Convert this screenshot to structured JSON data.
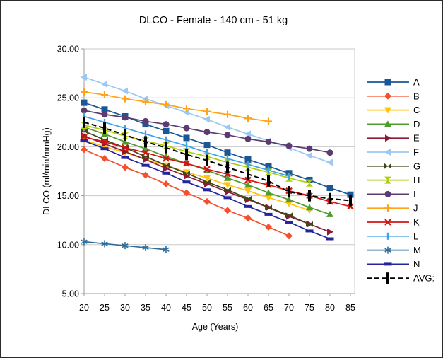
{
  "chart_data": {
    "type": "line",
    "title": "DLCO - Female - 140 cm - 51 kg",
    "xlabel": "Age (Years)",
    "ylabel": "DLCO (ml/min/mmHg)",
    "x_ticks": [
      20,
      25,
      30,
      35,
      40,
      45,
      50,
      55,
      60,
      65,
      70,
      75,
      80,
      85
    ],
    "y_ticks": [
      30,
      25,
      20,
      15,
      10,
      5
    ],
    "y_tick_labels": [
      "30.00",
      "25.00",
      "20.00",
      "15.00",
      "10.00",
      "5.00"
    ],
    "xlim": [
      20,
      85
    ],
    "ylim": [
      5,
      30
    ],
    "grid": "horizontal",
    "legend_position": "right",
    "ages": [
      20,
      25,
      30,
      35,
      40,
      45,
      50,
      55,
      60,
      65,
      70,
      75,
      80,
      85
    ],
    "series": [
      {
        "name": "A",
        "marker": "square",
        "color": "#1A5795",
        "values": [
          24.5,
          23.8,
          23.1,
          22.3,
          21.6,
          20.9,
          20.2,
          19.4,
          18.7,
          18.0,
          17.3,
          16.6,
          15.8,
          15.1
        ]
      },
      {
        "name": "B",
        "marker": "diamond",
        "color": "#F4502D",
        "values": [
          19.7,
          18.8,
          17.9,
          17.1,
          16.2,
          15.3,
          14.4,
          13.5,
          12.7,
          11.8,
          10.9
        ]
      },
      {
        "name": "C",
        "marker": "triangle-down",
        "color": "#FFC40E",
        "values": [
          20.7,
          20.0,
          19.4,
          18.7,
          18.1,
          17.4,
          16.8,
          16.1,
          15.5,
          14.8,
          14.2,
          13.5
        ]
      },
      {
        "name": "D",
        "marker": "triangle-up",
        "color": "#4F9B2D",
        "values": [
          22.0,
          21.3,
          20.5,
          19.8,
          19.0,
          18.3,
          17.6,
          16.8,
          16.1,
          15.3,
          14.6,
          13.8,
          13.1
        ]
      },
      {
        "name": "E",
        "marker": "triangle-right",
        "color": "#8C1A35",
        "values": [
          21.1,
          20.3,
          19.5,
          18.7,
          17.8,
          17.0,
          16.2,
          15.4,
          14.6,
          13.8,
          12.9,
          12.1,
          11.3
        ]
      },
      {
        "name": "F",
        "marker": "triangle-left",
        "color": "#9CC9F2",
        "values": [
          27.1,
          26.4,
          25.7,
          24.9,
          24.2,
          23.5,
          22.8,
          22.0,
          21.3,
          20.6,
          19.9,
          19.1,
          18.4
        ]
      },
      {
        "name": "G",
        "marker": "bowtie",
        "color": "#42461A",
        "values": [
          21.6,
          20.7,
          19.9,
          19.0,
          18.1,
          17.3,
          16.4,
          15.6,
          14.7,
          13.8,
          13.0,
          12.1
        ]
      },
      {
        "name": "H",
        "marker": "hourglass",
        "color": "#AECB0C",
        "values": [
          22.2,
          21.7,
          21.1,
          20.6,
          20.1,
          19.5,
          19.0,
          18.4,
          17.9,
          17.4,
          16.8,
          16.3
        ]
      },
      {
        "name": "I",
        "marker": "circle",
        "color": "#5C3B73",
        "values": [
          23.7,
          23.3,
          23.0,
          22.6,
          22.3,
          21.9,
          21.5,
          21.2,
          20.8,
          20.5,
          20.1,
          19.8,
          19.4
        ]
      },
      {
        "name": "J",
        "marker": "plus",
        "color": "#FFA319",
        "values": [
          25.6,
          25.3,
          24.9,
          24.6,
          24.3,
          23.9,
          23.6,
          23.3,
          22.9,
          22.6
        ]
      },
      {
        "name": "K",
        "marker": "x",
        "color": "#D21414",
        "values": [
          21.0,
          20.5,
          19.9,
          19.4,
          18.8,
          18.3,
          17.7,
          17.2,
          16.6,
          16.1,
          15.5,
          15.0,
          14.4,
          13.9
        ]
      },
      {
        "name": "L",
        "marker": "vbar",
        "color": "#3FA1E6",
        "values": [
          23.1,
          22.5,
          21.9,
          21.3,
          20.7,
          20.1,
          19.4,
          18.8,
          18.2,
          17.6,
          17.0
        ]
      },
      {
        "name": "M",
        "marker": "asterisk",
        "color": "#2F6D9B",
        "values": [
          10.3,
          10.1,
          9.9,
          9.7,
          9.5
        ]
      },
      {
        "name": "N",
        "marker": "hdash",
        "color": "#24249C",
        "values": [
          20.6,
          19.8,
          18.9,
          18.1,
          17.3,
          16.4,
          15.6,
          14.8,
          13.9,
          13.1,
          12.3,
          11.4,
          10.6
        ]
      },
      {
        "name": "AVG:",
        "marker": "avgbar",
        "color": "#000000",
        "dashed": true,
        "values": [
          22.5,
          21.9,
          21.2,
          20.5,
          19.9,
          19.2,
          18.6,
          17.9,
          17.2,
          16.5,
          15.4,
          15.0,
          14.7,
          14.5
        ]
      }
    ],
    "colors": {
      "gridline": "#C9C9C9",
      "axis": "#9B9B9B",
      "text": "#000000",
      "background": "#FFFFFF"
    }
  }
}
